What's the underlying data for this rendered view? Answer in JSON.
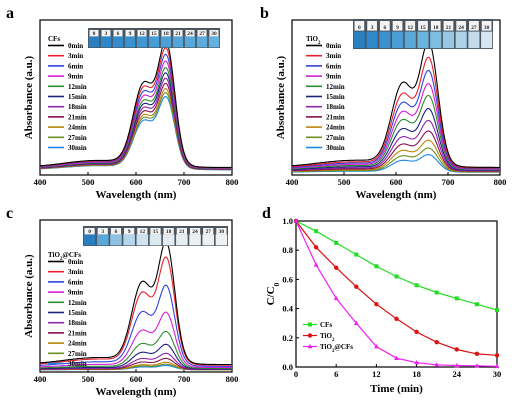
{
  "chart_data": [
    {
      "panel": "a",
      "type": "line",
      "xlabel": "Wavelength (nm)",
      "ylabel": "Absorbance (a.u.)",
      "xlim": [
        400,
        800
      ],
      "xticks": [
        "400",
        "500",
        "600",
        "700",
        "800"
      ],
      "legend_title": "CFs",
      "legend_placement": "top-left",
      "vial_labels": [
        "0",
        "3",
        "6",
        "9",
        "12",
        "15",
        "18",
        "21",
        "24",
        "27",
        "30"
      ],
      "vial_colors": [
        "#2a7fc0",
        "#2f86c8",
        "#348ccc",
        "#3992d0",
        "#3f98d3",
        "#459cd6",
        "#4ba0d8",
        "#52a4da",
        "#58a8dc",
        "#5eacde",
        "#64b0e0"
      ],
      "peak_positions": [
        615,
        664
      ],
      "series": [
        {
          "name": "0min",
          "color": "#000000",
          "peak": 1.0
        },
        {
          "name": "3min",
          "color": "#e8202a",
          "peak": 0.95
        },
        {
          "name": "6min",
          "color": "#2f43d9",
          "peak": 0.9
        },
        {
          "name": "9min",
          "color": "#d41fd2",
          "peak": 0.85
        },
        {
          "name": "12min",
          "color": "#2e8b2e",
          "peak": 0.8
        },
        {
          "name": "15min",
          "color": "#1a237e",
          "peak": 0.76
        },
        {
          "name": "18min",
          "color": "#8e24aa",
          "peak": 0.72
        },
        {
          "name": "21min",
          "color": "#880e4f",
          "peak": 0.68
        },
        {
          "name": "24min",
          "color": "#b8860b",
          "peak": 0.64
        },
        {
          "name": "27min",
          "color": "#6b8e23",
          "peak": 0.61
        },
        {
          "name": "30min",
          "color": "#1e88e5",
          "peak": 0.58
        }
      ]
    },
    {
      "panel": "b",
      "type": "line",
      "xlabel": "Wavelength (nm)",
      "ylabel": "Absorbance (a.u.)",
      "xlim": [
        400,
        800
      ],
      "xticks": [
        "400",
        "500",
        "600",
        "700",
        "800"
      ],
      "legend_title": "TiO",
      "legend_title_sub": "2",
      "legend_placement": "top-left",
      "vial_labels": [
        "0",
        "3",
        "6",
        "9",
        "12",
        "15",
        "18",
        "21",
        "24",
        "27",
        "30"
      ],
      "vial_colors": [
        "#2a7fc0",
        "#3188c8",
        "#3b92cf",
        "#4a9dd5",
        "#5aa8da",
        "#6cb3de",
        "#80bde2",
        "#96c8e6",
        "#acd2ea",
        "#c2dced",
        "#d6e6f0"
      ],
      "peak_positions": [
        612,
        664
      ],
      "series": [
        {
          "name": "0min",
          "color": "#000000",
          "peak": 1.0
        },
        {
          "name": "3min",
          "color": "#e8202a",
          "peak": 0.88
        },
        {
          "name": "6min",
          "color": "#2f43d9",
          "peak": 0.78
        },
        {
          "name": "9min",
          "color": "#d41fd2",
          "peak": 0.68
        },
        {
          "name": "12min",
          "color": "#2e8b2e",
          "peak": 0.59
        },
        {
          "name": "15min",
          "color": "#1a237e",
          "peak": 0.49
        },
        {
          "name": "18min",
          "color": "#8e24aa",
          "peak": 0.4
        },
        {
          "name": "21min",
          "color": "#880e4f",
          "peak": 0.32
        },
        {
          "name": "24min",
          "color": "#b8860b",
          "peak": 0.25
        },
        {
          "name": "27min",
          "color": "#6b8e23",
          "peak": 0.19
        },
        {
          "name": "30min",
          "color": "#1e88e5",
          "peak": 0.14
        }
      ]
    },
    {
      "panel": "c",
      "type": "line",
      "xlabel": "Wavelength (nm)",
      "ylabel": "Absorbance (a.u.)",
      "xlim": [
        400,
        800
      ],
      "xticks": [
        "400",
        "500",
        "600",
        "700",
        "800"
      ],
      "legend_title": "TiO",
      "legend_title_sub": "2",
      "legend_title_suffix": "@CFs",
      "legend_placement": "top-left",
      "vial_labels": [
        "0",
        "3",
        "6",
        "9",
        "12",
        "15",
        "18",
        "21",
        "24",
        "27",
        "30"
      ],
      "vial_colors": [
        "#2a7fc0",
        "#5aa8da",
        "#8cc2e4",
        "#b4d6ec",
        "#cfe2ef",
        "#dde9f1",
        "#e4ecf2",
        "#e8eef2",
        "#ebf0f3",
        "#edf1f3",
        "#eff2f4"
      ],
      "peak_positions": [
        612,
        664
      ],
      "series": [
        {
          "name": "0min",
          "color": "#000000",
          "peak": 1.0
        },
        {
          "name": "3min",
          "color": "#e8202a",
          "peak": 0.88
        },
        {
          "name": "6min",
          "color": "#2f43d9",
          "peak": 0.66
        },
        {
          "name": "9min",
          "color": "#d41fd2",
          "peak": 0.45
        },
        {
          "name": "12min",
          "color": "#2e8b2e",
          "peak": 0.3
        },
        {
          "name": "15min",
          "color": "#1a237e",
          "peak": 0.2
        },
        {
          "name": "18min",
          "color": "#8e24aa",
          "peak": 0.13
        },
        {
          "name": "21min",
          "color": "#880e4f",
          "peak": 0.09
        },
        {
          "name": "24min",
          "color": "#b8860b",
          "peak": 0.06
        },
        {
          "name": "27min",
          "color": "#6b8e23",
          "peak": 0.045
        },
        {
          "name": "30min",
          "color": "#1e88e5",
          "peak": 0.035
        }
      ]
    },
    {
      "panel": "d",
      "type": "line",
      "xlabel": "Time (min)",
      "ylabel": "C/C",
      "ylabel_sub": "0",
      "xlim": [
        0,
        30
      ],
      "ylim": [
        0.0,
        1.0
      ],
      "xticks": [
        "0",
        "6",
        "12",
        "18",
        "24",
        "30"
      ],
      "yticks": [
        "0.0",
        "0.2",
        "0.4",
        "0.6",
        "0.8",
        "1.0"
      ],
      "legend_placement": "bottom-left",
      "x": [
        0,
        3,
        6,
        9,
        12,
        15,
        18,
        21,
        24,
        27,
        30
      ],
      "series": [
        {
          "name": "CFs",
          "color": "#22dd22",
          "marker": "square",
          "values": [
            1.0,
            0.93,
            0.85,
            0.77,
            0.69,
            0.62,
            0.56,
            0.51,
            0.47,
            0.43,
            0.39
          ]
        },
        {
          "name": "TiO",
          "name_sub": "2",
          "color": "#dd1111",
          "marker": "circle",
          "values": [
            1.0,
            0.82,
            0.68,
            0.55,
            0.43,
            0.33,
            0.24,
            0.17,
            0.12,
            0.09,
            0.08
          ]
        },
        {
          "name": "TiO",
          "name_sub": "2",
          "name_suffix": "@CFs",
          "color": "#ee22ee",
          "marker": "triangle",
          "values": [
            1.0,
            0.7,
            0.47,
            0.3,
            0.14,
            0.06,
            0.03,
            0.015,
            0.01,
            0.008,
            0.005
          ]
        }
      ]
    }
  ]
}
